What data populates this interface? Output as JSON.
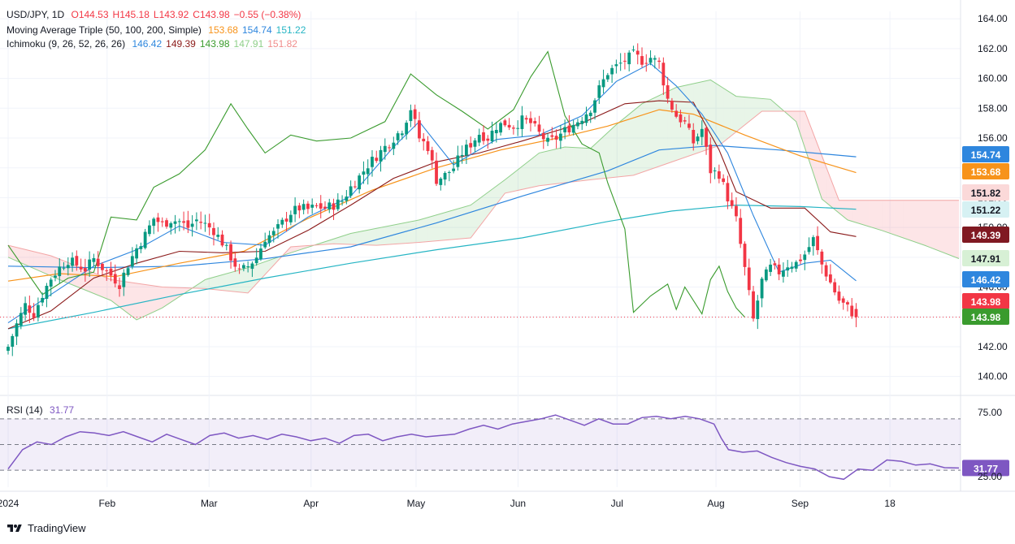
{
  "header": {
    "symbol": "USD/JPY, 1D",
    "ohlc": [
      {
        "k": "O",
        "v": "144.53"
      },
      {
        "k": "H",
        "v": "145.18"
      },
      {
        "k": "L",
        "v": "143.92"
      },
      {
        "k": "C",
        "v": "143.98"
      },
      {
        "k": "",
        "v": "−0.55 (−0.38%)"
      }
    ],
    "ohlc_color": "#f23645",
    "ma_label": "Moving Average Triple (50, 100, 200, Simple)",
    "ma_values": [
      {
        "v": "153.68",
        "color": "#f7931a"
      },
      {
        "v": "154.74",
        "color": "#2e86de"
      },
      {
        "v": "151.22",
        "color": "#26b5c4"
      }
    ],
    "ichi_label": "Ichimoku (9, 26, 52, 26, 26)",
    "ichi_values": [
      {
        "v": "146.42",
        "color": "#2e86de"
      },
      {
        "v": "149.39",
        "color": "#8b1a1a"
      },
      {
        "v": "143.98",
        "color": "#3a9b2e"
      },
      {
        "v": "147.91",
        "color": "#8fcf8a"
      },
      {
        "v": "151.82",
        "color": "#f08c8c"
      }
    ],
    "rsi_label": "RSI (14)",
    "rsi_value": "31.77",
    "rsi_color": "#7e57c2"
  },
  "brand": {
    "name": "TradingView"
  },
  "chart_data": {
    "type": "candlestick",
    "symbol": "USD/JPY",
    "timeframe": "1D",
    "x_tick_labels": [
      "2024",
      "Feb",
      "Mar",
      "Apr",
      "May",
      "Jun",
      "Jul",
      "Aug",
      "Sep",
      "18"
    ],
    "price_axis": {
      "min": 139,
      "max": 164.5,
      "ticks": [
        "164.00",
        "162.00",
        "160.00",
        "158.00",
        "156.00",
        "154.00",
        "152.00",
        "150.00",
        "148.00",
        "146.00",
        "144.00",
        "142.00",
        "140.00"
      ]
    },
    "price_labels": [
      {
        "text": "154.74",
        "value": 154.74,
        "color": "#2e86de"
      },
      {
        "text": "153.68",
        "value": 153.68,
        "color": "#f7931a"
      },
      {
        "text": "151.82",
        "value": 151.82,
        "color": "#fbd9d9",
        "text_color": "#131722"
      },
      {
        "text": "151.22",
        "value": 151.22,
        "color": "#d6f1f3",
        "text_color": "#131722"
      },
      {
        "text": "149.39",
        "value": 149.39,
        "color": "#801922"
      },
      {
        "text": "147.91",
        "value": 147.91,
        "color": "#d7f0d5",
        "text_color": "#131722"
      },
      {
        "text": "146.42",
        "value": 146.42,
        "color": "#2e86de"
      },
      {
        "text": "143.98",
        "value": 143.98,
        "color": "#f23645"
      },
      {
        "text": "143.98",
        "value": 143.98,
        "color": "#3a9b2e"
      }
    ],
    "last_price": 143.98,
    "close_path": [
      [
        0,
        142.0
      ],
      [
        2,
        143.5
      ],
      [
        4,
        144.8
      ],
      [
        6,
        144.2
      ],
      [
        8,
        145.5
      ],
      [
        10,
        146.6
      ],
      [
        12,
        147.3
      ],
      [
        14,
        147.8
      ],
      [
        16,
        147.5
      ],
      [
        18,
        147.2
      ],
      [
        20,
        147.9
      ],
      [
        22,
        147.3
      ],
      [
        24,
        146.8
      ],
      [
        26,
        146.2
      ],
      [
        28,
        147.5
      ],
      [
        30,
        148.6
      ],
      [
        32,
        149.5
      ],
      [
        34,
        150.6
      ],
      [
        36,
        150.2
      ],
      [
        38,
        150.5
      ],
      [
        40,
        150.4
      ],
      [
        42,
        150.0
      ],
      [
        44,
        150.5
      ],
      [
        46,
        150.2
      ],
      [
        48,
        149.8
      ],
      [
        50,
        149.0
      ],
      [
        52,
        148.0
      ],
      [
        54,
        147.0
      ],
      [
        56,
        147.4
      ],
      [
        58,
        148.0
      ],
      [
        60,
        149.3
      ],
      [
        62,
        149.6
      ],
      [
        64,
        150.3
      ],
      [
        66,
        151.0
      ],
      [
        68,
        151.3
      ],
      [
        70,
        151.2
      ],
      [
        72,
        151.4
      ],
      [
        74,
        151.3
      ],
      [
        76,
        151.5
      ],
      [
        78,
        151.8
      ],
      [
        80,
        152.7
      ],
      [
        82,
        153.4
      ],
      [
        84,
        154.2
      ],
      [
        86,
        154.8
      ],
      [
        88,
        155.4
      ],
      [
        90,
        156.0
      ],
      [
        92,
        156.6
      ],
      [
        94,
        158.0
      ],
      [
        96,
        156.0
      ],
      [
        98,
        155.4
      ],
      [
        100,
        153.2
      ],
      [
        102,
        153.5
      ],
      [
        104,
        154.0
      ],
      [
        106,
        155.0
      ],
      [
        108,
        155.6
      ],
      [
        110,
        156.3
      ],
      [
        112,
        156.0
      ],
      [
        114,
        156.8
      ],
      [
        116,
        157.0
      ],
      [
        118,
        156.8
      ],
      [
        120,
        157.2
      ],
      [
        122,
        157.0
      ],
      [
        124,
        156.3
      ],
      [
        126,
        155.7
      ],
      [
        128,
        156.0
      ],
      [
        130,
        156.5
      ],
      [
        132,
        156.9
      ],
      [
        134,
        157.4
      ],
      [
        136,
        158.0
      ],
      [
        138,
        159.3
      ],
      [
        140,
        160.4
      ],
      [
        142,
        160.8
      ],
      [
        144,
        161.2
      ],
      [
        146,
        161.6
      ],
      [
        148,
        161.2
      ],
      [
        150,
        161.4
      ],
      [
        152,
        161.0
      ],
      [
        154,
        158.6
      ],
      [
        156,
        157.5
      ],
      [
        158,
        157.0
      ],
      [
        160,
        155.7
      ],
      [
        162,
        156.6
      ],
      [
        164,
        153.8
      ],
      [
        166,
        153.6
      ],
      [
        168,
        152.0
      ],
      [
        170,
        150.5
      ],
      [
        172,
        147.2
      ],
      [
        174,
        143.8
      ],
      [
        176,
        146.4
      ],
      [
        178,
        147.3
      ],
      [
        180,
        147.0
      ],
      [
        182,
        147.5
      ],
      [
        184,
        147.6
      ],
      [
        186,
        148.2
      ],
      [
        188,
        149.2
      ],
      [
        190,
        147.5
      ],
      [
        192,
        146.3
      ],
      [
        194,
        145.1
      ],
      [
        196,
        144.6
      ],
      [
        198,
        143.98
      ]
    ],
    "ma50": [
      [
        0,
        146.4
      ],
      [
        12,
        146.9
      ],
      [
        25,
        146.7
      ],
      [
        40,
        147.6
      ],
      [
        55,
        148.4
      ],
      [
        70,
        150.6
      ],
      [
        85,
        152.5
      ],
      [
        100,
        154.0
      ],
      [
        115,
        155.2
      ],
      [
        130,
        156.1
      ],
      [
        140,
        156.8
      ],
      [
        152,
        157.9
      ],
      [
        160,
        157.6
      ],
      [
        172,
        156.2
      ],
      [
        185,
        154.8
      ],
      [
        198,
        153.68
      ]
    ],
    "ma100": [
      [
        0,
        147.4
      ],
      [
        20,
        147.3
      ],
      [
        40,
        147.4
      ],
      [
        60,
        147.9
      ],
      [
        80,
        148.7
      ],
      [
        100,
        150.3
      ],
      [
        120,
        152.1
      ],
      [
        140,
        153.8
      ],
      [
        152,
        155.2
      ],
      [
        165,
        155.5
      ],
      [
        180,
        155.2
      ],
      [
        198,
        154.74
      ]
    ],
    "ma200": [
      [
        0,
        143.2
      ],
      [
        20,
        144.3
      ],
      [
        40,
        145.5
      ],
      [
        60,
        146.6
      ],
      [
        80,
        147.6
      ],
      [
        100,
        148.5
      ],
      [
        120,
        149.3
      ],
      [
        140,
        150.4
      ],
      [
        155,
        151.1
      ],
      [
        170,
        151.5
      ],
      [
        185,
        151.4
      ],
      [
        198,
        151.22
      ]
    ],
    "tenkan": [
      [
        0,
        143.6
      ],
      [
        10,
        145.5
      ],
      [
        20,
        147.4
      ],
      [
        30,
        148.5
      ],
      [
        40,
        150.1
      ],
      [
        50,
        149.0
      ],
      [
        60,
        148.8
      ],
      [
        70,
        150.7
      ],
      [
        80,
        152.1
      ],
      [
        90,
        155.4
      ],
      [
        96,
        157.1
      ],
      [
        104,
        154.2
      ],
      [
        114,
        155.9
      ],
      [
        124,
        156.2
      ],
      [
        134,
        157.5
      ],
      [
        142,
        159.8
      ],
      [
        150,
        161.0
      ],
      [
        156,
        159.5
      ],
      [
        162,
        157.6
      ],
      [
        168,
        155.0
      ],
      [
        174,
        150.8
      ],
      [
        180,
        147.0
      ],
      [
        186,
        147.6
      ],
      [
        192,
        147.8
      ],
      [
        198,
        146.42
      ]
    ],
    "kijun": [
      [
        0,
        143.2
      ],
      [
        10,
        144.4
      ],
      [
        20,
        146.6
      ],
      [
        30,
        147.6
      ],
      [
        40,
        148.4
      ],
      [
        50,
        148.3
      ],
      [
        60,
        148.4
      ],
      [
        70,
        149.8
      ],
      [
        80,
        151.5
      ],
      [
        90,
        153.3
      ],
      [
        100,
        154.4
      ],
      [
        110,
        155.0
      ],
      [
        120,
        155.8
      ],
      [
        134,
        157.0
      ],
      [
        144,
        158.3
      ],
      [
        152,
        158.5
      ],
      [
        160,
        158.4
      ],
      [
        166,
        155.2
      ],
      [
        170,
        152.4
      ],
      [
        178,
        151.3
      ],
      [
        186,
        151.3
      ],
      [
        192,
        149.7
      ],
      [
        198,
        149.39
      ]
    ],
    "chikou": [
      [
        0,
        148.8
      ],
      [
        8,
        145.5
      ],
      [
        14,
        146.6
      ],
      [
        20,
        147.0
      ],
      [
        24,
        150.7
      ],
      [
        30,
        150.5
      ],
      [
        34,
        152.7
      ],
      [
        40,
        153.6
      ],
      [
        46,
        155.2
      ],
      [
        52,
        158.3
      ],
      [
        56,
        156.6
      ],
      [
        60,
        155.0
      ],
      [
        66,
        156.2
      ],
      [
        72,
        155.8
      ],
      [
        80,
        156.0
      ],
      [
        88,
        157.1
      ],
      [
        94,
        160.3
      ],
      [
        100,
        158.9
      ],
      [
        106,
        157.8
      ],
      [
        112,
        156.6
      ],
      [
        118,
        157.9
      ],
      [
        122,
        160.1
      ],
      [
        126,
        161.8
      ],
      [
        130,
        157.5
      ],
      [
        134,
        155.6
      ],
      [
        138,
        155.0
      ],
      [
        140,
        153.0
      ],
      [
        144,
        149.9
      ],
      [
        146,
        144.3
      ],
      [
        150,
        145.4
      ],
      [
        154,
        146.2
      ],
      [
        156,
        144.5
      ],
      [
        158,
        146.0
      ],
      [
        162,
        144.2
      ],
      [
        164,
        146.5
      ],
      [
        166,
        147.4
      ],
      [
        168,
        145.7
      ],
      [
        170,
        144.6
      ],
      [
        172,
        143.98
      ]
    ],
    "span_a": [
      [
        0,
        148.0
      ],
      [
        12,
        146.5
      ],
      [
        24,
        145.1
      ],
      [
        30,
        143.8
      ],
      [
        36,
        144.6
      ],
      [
        46,
        146.5
      ],
      [
        56,
        147.3
      ],
      [
        66,
        148.3
      ],
      [
        80,
        149.6
      ],
      [
        96,
        150.5
      ],
      [
        108,
        151.5
      ],
      [
        116,
        153.2
      ],
      [
        124,
        155.0
      ],
      [
        130,
        155.4
      ],
      [
        136,
        155.3
      ],
      [
        142,
        156.9
      ],
      [
        148,
        158.3
      ],
      [
        156,
        159.4
      ],
      [
        164,
        159.9
      ],
      [
        170,
        158.8
      ],
      [
        178,
        158.6
      ],
      [
        184,
        157.1
      ],
      [
        190,
        151.9
      ],
      [
        196,
        150.5
      ],
      [
        204,
        149.8
      ],
      [
        214,
        148.8
      ],
      [
        222,
        147.91
      ]
    ],
    "span_b": [
      [
        0,
        148.8
      ],
      [
        10,
        148.1
      ],
      [
        24,
        146.5
      ],
      [
        36,
        146.0
      ],
      [
        46,
        145.9
      ],
      [
        56,
        145.6
      ],
      [
        66,
        148.7
      ],
      [
        76,
        148.9
      ],
      [
        86,
        148.8
      ],
      [
        96,
        149.0
      ],
      [
        108,
        149.3
      ],
      [
        116,
        152.3
      ],
      [
        124,
        152.8
      ],
      [
        136,
        153.2
      ],
      [
        146,
        153.5
      ],
      [
        156,
        154.5
      ],
      [
        166,
        155.5
      ],
      [
        176,
        157.8
      ],
      [
        186,
        157.8
      ],
      [
        194,
        151.82
      ],
      [
        222,
        151.82
      ]
    ],
    "rsi": {
      "period": 14,
      "last": 31.77,
      "ylim": [
        20,
        80
      ],
      "upper": 70,
      "mid": 50,
      "lower": 30,
      "ticks": [
        "75.00",
        "25.00"
      ],
      "values": [
        [
          0,
          31
        ],
        [
          4,
          46
        ],
        [
          8,
          52
        ],
        [
          12,
          50
        ],
        [
          16,
          56
        ],
        [
          20,
          60
        ],
        [
          24,
          59
        ],
        [
          28,
          57
        ],
        [
          32,
          60
        ],
        [
          36,
          56
        ],
        [
          40,
          52
        ],
        [
          44,
          58
        ],
        [
          48,
          54
        ],
        [
          52,
          50
        ],
        [
          56,
          57
        ],
        [
          60,
          59
        ],
        [
          64,
          55
        ],
        [
          68,
          57
        ],
        [
          72,
          54
        ],
        [
          76,
          58
        ],
        [
          80,
          56
        ],
        [
          84,
          53
        ],
        [
          88,
          55
        ],
        [
          92,
          51
        ],
        [
          96,
          57
        ],
        [
          100,
          58
        ],
        [
          104,
          53
        ],
        [
          108,
          56
        ],
        [
          112,
          58
        ],
        [
          116,
          56
        ],
        [
          120,
          57
        ],
        [
          124,
          58
        ],
        [
          128,
          62
        ],
        [
          132,
          65
        ],
        [
          136,
          62
        ],
        [
          140,
          66
        ],
        [
          144,
          68
        ],
        [
          148,
          70
        ],
        [
          152,
          73
        ],
        [
          156,
          69
        ],
        [
          160,
          65
        ],
        [
          164,
          70
        ],
        [
          168,
          66
        ],
        [
          172,
          66
        ],
        [
          176,
          71
        ],
        [
          180,
          72
        ],
        [
          184,
          70
        ],
        [
          188,
          72
        ],
        [
          192,
          70
        ],
        [
          196,
          66
        ],
        [
          198,
          55
        ],
        [
          200,
          46
        ],
        [
          204,
          44
        ],
        [
          208,
          45
        ],
        [
          212,
          40
        ],
        [
          216,
          36
        ],
        [
          220,
          33
        ],
        [
          224,
          31
        ],
        [
          228,
          25
        ],
        [
          232,
          23
        ],
        [
          236,
          31
        ],
        [
          240,
          30
        ],
        [
          244,
          38
        ],
        [
          248,
          37
        ],
        [
          252,
          34
        ],
        [
          256,
          35
        ],
        [
          260,
          32
        ],
        [
          264,
          31.77
        ]
      ]
    }
  }
}
